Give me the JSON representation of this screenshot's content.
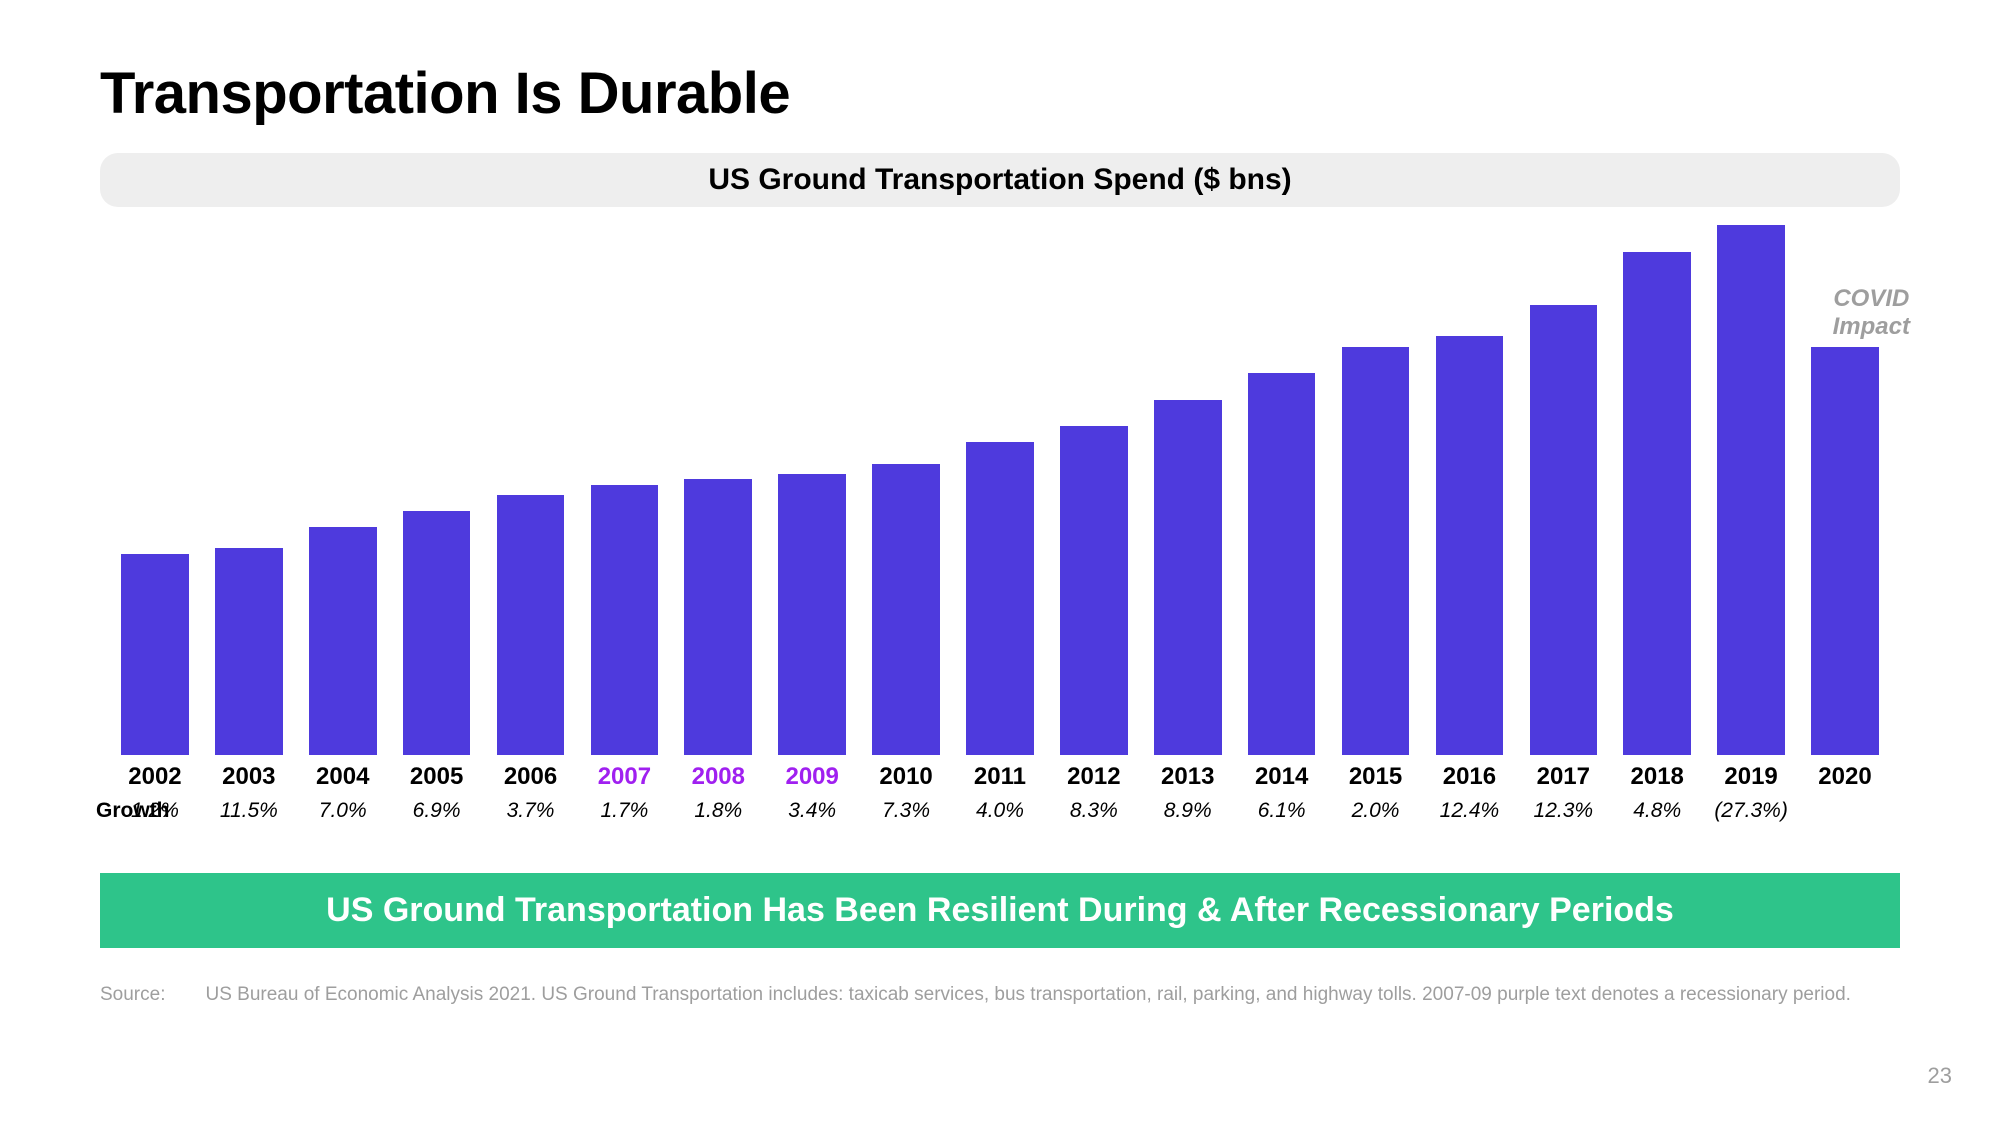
{
  "title": "Transportation Is Durable",
  "subtitle": "US Ground Transportation Spend ($ bns)",
  "chart": {
    "type": "bar",
    "bar_color": "#4e3add",
    "background_color": "#ffffff",
    "subtitle_bg": "#eeeeee",
    "max_value": 530,
    "bars": [
      {
        "year": "2002",
        "height_pct": 38,
        "growth": "1.2%",
        "year_color": "#000000"
      },
      {
        "year": "2003",
        "height_pct": 39,
        "growth": "11.5%",
        "year_color": "#000000"
      },
      {
        "year": "2004",
        "height_pct": 43,
        "growth": "7.0%",
        "year_color": "#000000"
      },
      {
        "year": "2005",
        "height_pct": 46,
        "growth": "6.9%",
        "year_color": "#000000"
      },
      {
        "year": "2006",
        "height_pct": 49,
        "growth": "3.7%",
        "year_color": "#000000"
      },
      {
        "year": "2007",
        "height_pct": 51,
        "growth": "1.7%",
        "year_color": "#a020f0"
      },
      {
        "year": "2008",
        "height_pct": 52,
        "growth": "1.8%",
        "year_color": "#a020f0"
      },
      {
        "year": "2009",
        "height_pct": 53,
        "growth": "3.4%",
        "year_color": "#a020f0"
      },
      {
        "year": "2010",
        "height_pct": 55,
        "growth": "7.3%",
        "year_color": "#000000"
      },
      {
        "year": "2011",
        "height_pct": 59,
        "growth": "4.0%",
        "year_color": "#000000"
      },
      {
        "year": "2012",
        "height_pct": 62,
        "growth": "8.3%",
        "year_color": "#000000"
      },
      {
        "year": "2013",
        "height_pct": 67,
        "growth": "8.9%",
        "year_color": "#000000"
      },
      {
        "year": "2014",
        "height_pct": 72,
        "growth": "6.1%",
        "year_color": "#000000"
      },
      {
        "year": "2015",
        "height_pct": 77,
        "growth": "2.0%",
        "year_color": "#000000"
      },
      {
        "year": "2016",
        "height_pct": 79,
        "growth": "12.4%",
        "year_color": "#000000"
      },
      {
        "year": "2017",
        "height_pct": 85,
        "growth": "12.3%",
        "year_color": "#000000"
      },
      {
        "year": "2018",
        "height_pct": 95,
        "growth": "4.8%",
        "year_color": "#000000"
      },
      {
        "year": "2019",
        "height_pct": 100,
        "growth": "(27.3%)",
        "year_color": "#000000"
      },
      {
        "year": "2020",
        "height_pct": 77,
        "growth": "",
        "year_color": "#000000"
      }
    ],
    "annotation": {
      "line1": "COVID",
      "line2": "Impact",
      "color": "#9e9e9e"
    },
    "title_fontsize": 58,
    "subtitle_fontsize": 30,
    "year_fontsize": 24,
    "growth_fontsize": 21
  },
  "growth_label": "Growth",
  "key_message": {
    "text": "US Ground Transportation Has Been Resilient During & After Recessionary Periods",
    "bg_color": "#2ec48a",
    "text_color": "#ffffff"
  },
  "source": {
    "label": "Source:",
    "text": "US Bureau of Economic Analysis 2021. US Ground Transportation includes: taxicab services, bus transportation, rail, parking, and highway tolls. 2007-09 purple text denotes a recessionary period."
  },
  "page_number": "23"
}
